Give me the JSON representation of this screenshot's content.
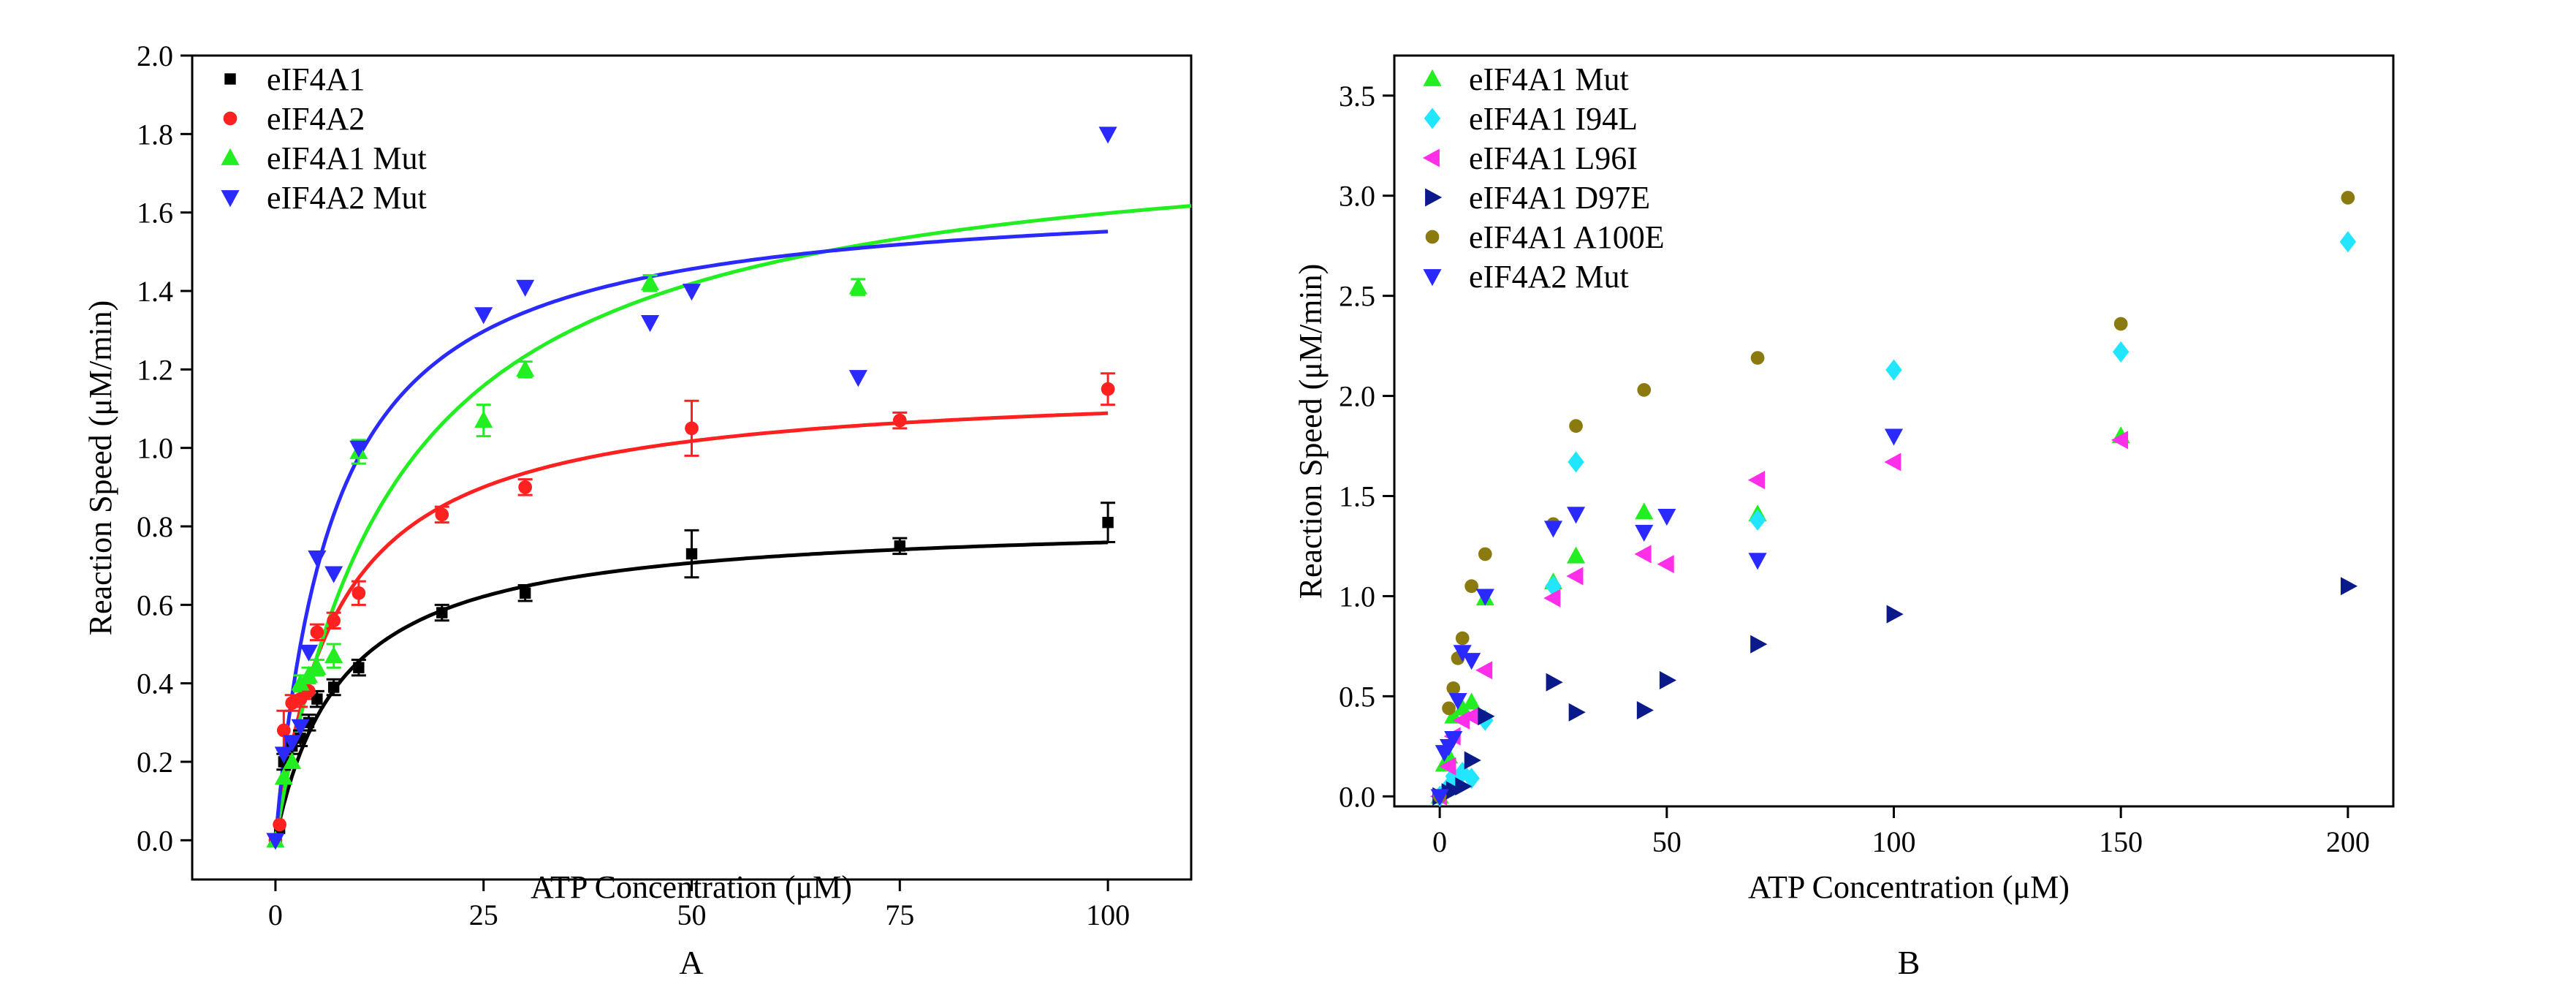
{
  "chart_data": [
    {
      "panel_label": "A",
      "type": "scatter",
      "xlabel": "ATP Concentration (μM)",
      "ylabel": "Reaction Speed (μM/min)",
      "xlim": [
        -10,
        110
      ],
      "ylim": [
        -0.1,
        2.0
      ],
      "xticks": [
        0,
        25,
        50,
        75,
        100
      ],
      "xtick_labels": [
        "0",
        "25",
        "50",
        "75",
        "100"
      ],
      "yticks": [
        0.0,
        0.2,
        0.4,
        0.6,
        0.8,
        1.0,
        1.2,
        1.4,
        1.6,
        1.8,
        2.0
      ],
      "ytick_labels": [
        "0.0",
        "0.2",
        "0.4",
        "0.6",
        "0.8",
        "1.0",
        "1.2",
        "1.4",
        "1.6",
        "1.8",
        "2.0"
      ],
      "legend_position": "top-left",
      "series": [
        {
          "name": "eIF4A1",
          "color": "#000000",
          "marker": "square",
          "points": [
            [
              0,
              0.0
            ],
            [
              0.5,
              0.03
            ],
            [
              1,
              0.2
            ],
            [
              2,
              0.24
            ],
            [
              3,
              0.26
            ],
            [
              4,
              0.3
            ],
            [
              5,
              0.36
            ],
            [
              7,
              0.39
            ],
            [
              10,
              0.44
            ],
            [
              20,
              0.58
            ],
            [
              30,
              0.63
            ],
            [
              50,
              0.73
            ],
            [
              75,
              0.75
            ],
            [
              100,
              0.81
            ]
          ],
          "errors": [
            0,
            0,
            0.02,
            0.02,
            0.02,
            0.02,
            0.02,
            0.02,
            0.02,
            0.02,
            0.02,
            0.06,
            0.02,
            0.05
          ],
          "fit": {
            "model": "Michaelis-Menten",
            "vmax": 0.82,
            "km": 8.0,
            "x_end": 100
          }
        },
        {
          "name": "eIF4A2",
          "color": "#ff2020",
          "marker": "circle",
          "points": [
            [
              0,
              0.0
            ],
            [
              0.5,
              0.04
            ],
            [
              1,
              0.28
            ],
            [
              2,
              0.35
            ],
            [
              3,
              0.36
            ],
            [
              4,
              0.38
            ],
            [
              5,
              0.53
            ],
            [
              7,
              0.56
            ],
            [
              10,
              0.63
            ],
            [
              20,
              0.83
            ],
            [
              30,
              0.9
            ],
            [
              50,
              1.05
            ],
            [
              75,
              1.07
            ],
            [
              100,
              1.15
            ]
          ],
          "errors": [
            0,
            0,
            0.05,
            0.02,
            0.02,
            0.02,
            0.02,
            0.02,
            0.03,
            0.02,
            0.02,
            0.07,
            0.02,
            0.04
          ],
          "fit": {
            "model": "Michaelis-Menten",
            "vmax": 1.17,
            "km": 7.5,
            "x_end": 100
          }
        },
        {
          "name": "eIF4A1 Mut",
          "color": "#22ee22",
          "marker": "triangle-up",
          "points": [
            [
              0,
              0.0
            ],
            [
              1,
              0.16
            ],
            [
              2,
              0.2
            ],
            [
              3,
              0.4
            ],
            [
              4,
              0.42
            ],
            [
              5,
              0.44
            ],
            [
              7,
              0.47
            ],
            [
              10,
              0.99
            ],
            [
              25,
              1.07
            ],
            [
              30,
              1.2
            ],
            [
              45,
              1.42
            ],
            [
              70,
              1.41
            ]
          ],
          "errors": [
            0,
            0,
            0,
            0.02,
            0.02,
            0.02,
            0.03,
            0.03,
            0.04,
            0.02,
            0.02,
            0.02
          ],
          "fit": {
            "model": "Michaelis-Menten",
            "vmax": 1.83,
            "km": 14.5,
            "x_end": 110
          }
        },
        {
          "name": "eIF4A2 Mut",
          "color": "#2a2aff",
          "marker": "triangle-down",
          "points": [
            [
              0,
              0.0
            ],
            [
              1,
              0.22
            ],
            [
              2,
              0.25
            ],
            [
              3,
              0.29
            ],
            [
              4,
              0.48
            ],
            [
              5,
              0.72
            ],
            [
              7,
              0.68
            ],
            [
              10,
              1.0
            ],
            [
              25,
              1.34
            ],
            [
              30,
              1.41
            ],
            [
              45,
              1.32
            ],
            [
              50,
              1.4
            ],
            [
              70,
              1.18
            ],
            [
              100,
              1.8
            ]
          ],
          "errors": [
            0,
            0,
            0,
            0,
            0,
            0,
            0,
            0,
            0,
            0,
            0,
            0,
            0,
            0
          ],
          "fit": {
            "model": "Michaelis-Menten",
            "vmax": 1.66,
            "km": 7.0,
            "x_end": 100
          }
        }
      ]
    },
    {
      "panel_label": "B",
      "type": "scatter",
      "xlabel": "ATP Concentration (μM)",
      "ylabel": "Reaction Speed (μM/min)",
      "xlim": [
        -10,
        210
      ],
      "ylim": [
        -0.05,
        3.7
      ],
      "xticks": [
        0,
        50,
        100,
        150,
        200
      ],
      "xtick_labels": [
        "0",
        "50",
        "100",
        "150",
        "200"
      ],
      "yticks": [
        0.0,
        0.5,
        1.0,
        1.5,
        2.0,
        2.5,
        3.0,
        3.5
      ],
      "ytick_labels": [
        "0.0",
        "0.5",
        "1.0",
        "1.5",
        "2.0",
        "2.5",
        "3.0",
        "3.5"
      ],
      "legend_position": "top-left",
      "series": [
        {
          "name": "eIF4A1 Mut",
          "color": "#22ee22",
          "marker": "triangle-up",
          "points": [
            [
              0,
              0.0
            ],
            [
              1,
              0.16
            ],
            [
              2,
              0.2
            ],
            [
              3,
              0.4
            ],
            [
              5,
              0.44
            ],
            [
              7,
              0.47
            ],
            [
              10,
              0.99
            ],
            [
              25,
              1.07
            ],
            [
              30,
              1.2
            ],
            [
              45,
              1.42
            ],
            [
              70,
              1.41
            ],
            [
              150,
              1.8
            ]
          ]
        },
        {
          "name": "eIF4A1 I94L",
          "color": "#22e5ff",
          "marker": "diamond",
          "points": [
            [
              0,
              0.0
            ],
            [
              2,
              0.05
            ],
            [
              3,
              0.1
            ],
            [
              5,
              0.12
            ],
            [
              7,
              0.09
            ],
            [
              10,
              0.38
            ],
            [
              25,
              1.05
            ],
            [
              30,
              1.67
            ],
            [
              70,
              1.38
            ],
            [
              100,
              2.13
            ],
            [
              150,
              2.22
            ],
            [
              200,
              2.77
            ]
          ]
        },
        {
          "name": "eIF4A1 L96I",
          "color": "#ff2ee8",
          "marker": "triangle-left",
          "points": [
            [
              0,
              0.0
            ],
            [
              2,
              0.15
            ],
            [
              3,
              0.3
            ],
            [
              5,
              0.38
            ],
            [
              7,
              0.4
            ],
            [
              10,
              0.63
            ],
            [
              25,
              0.99
            ],
            [
              30,
              1.1
            ],
            [
              45,
              1.21
            ],
            [
              50,
              1.16
            ],
            [
              70,
              1.58
            ],
            [
              100,
              1.67
            ],
            [
              150,
              1.78
            ]
          ]
        },
        {
          "name": "eIF4A1 D97E",
          "color": "#0a1a8a",
          "marker": "triangle-right",
          "points": [
            [
              0,
              0.0
            ],
            [
              2,
              0.02
            ],
            [
              3,
              0.03
            ],
            [
              5,
              0.05
            ],
            [
              7,
              0.18
            ],
            [
              10,
              0.4
            ],
            [
              25,
              0.57
            ],
            [
              30,
              0.42
            ],
            [
              45,
              0.43
            ],
            [
              50,
              0.58
            ],
            [
              70,
              0.76
            ],
            [
              100,
              0.91
            ],
            [
              200,
              1.05
            ]
          ]
        },
        {
          "name": "eIF4A1 A100E",
          "color": "#8a7a10",
          "marker": "circle",
          "points": [
            [
              0,
              0.0
            ],
            [
              2,
              0.44
            ],
            [
              3,
              0.54
            ],
            [
              5,
              0.79
            ],
            [
              4,
              0.69
            ],
            [
              7,
              1.05
            ],
            [
              10,
              1.21
            ],
            [
              25,
              1.36
            ],
            [
              30,
              1.85
            ],
            [
              45,
              2.03
            ],
            [
              70,
              2.19
            ],
            [
              150,
              2.36
            ],
            [
              200,
              2.99
            ]
          ]
        },
        {
          "name": "eIF4A2 Mut",
          "color": "#2a2aff",
          "marker": "triangle-down",
          "points": [
            [
              0,
              0.0
            ],
            [
              1,
              0.22
            ],
            [
              2,
              0.25
            ],
            [
              3,
              0.29
            ],
            [
              4,
              0.48
            ],
            [
              5,
              0.72
            ],
            [
              7,
              0.68
            ],
            [
              10,
              1.0
            ],
            [
              25,
              1.34
            ],
            [
              30,
              1.41
            ],
            [
              45,
              1.32
            ],
            [
              50,
              1.4
            ],
            [
              70,
              1.18
            ],
            [
              100,
              1.8
            ]
          ]
        }
      ]
    }
  ]
}
